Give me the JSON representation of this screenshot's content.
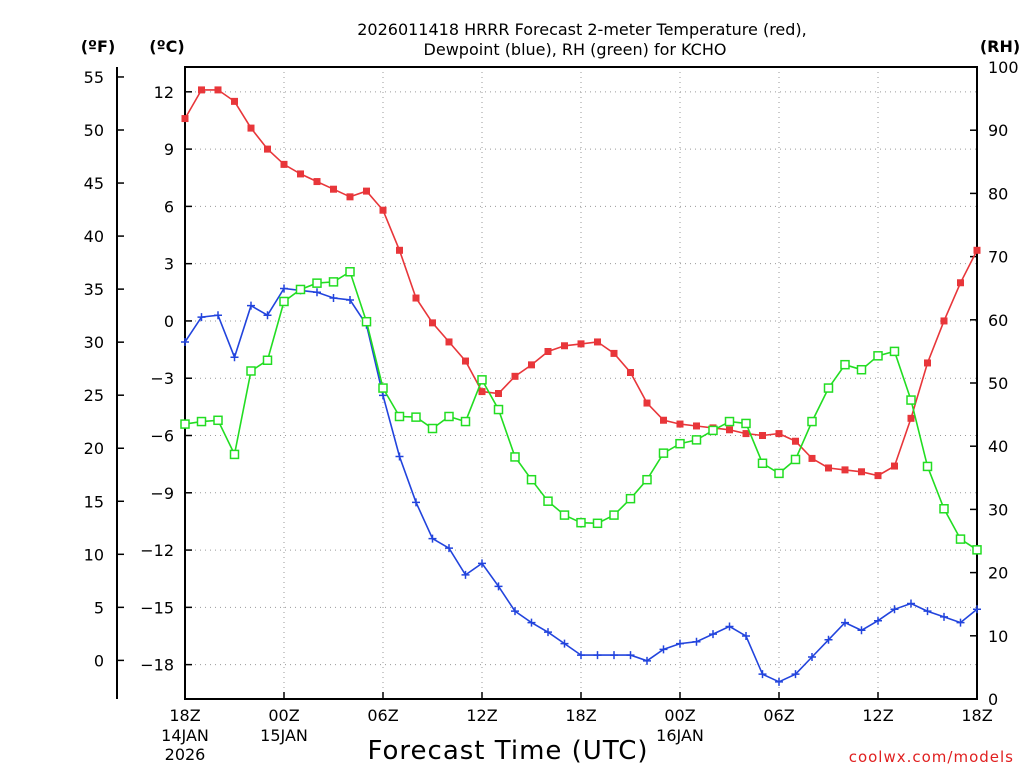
{
  "chart_data": {
    "type": "line",
    "title_line1": "2026011418 HRRR Forecast 2-meter Temperature (red),",
    "title_line2": "Dewpoint (blue), RH (green) for KCHO",
    "xlabel": "Forecast Time (UTC)",
    "credit": "coolwx.com/models",
    "units": {
      "fahrenheit": "(ºF)",
      "celsius": "(ºC)",
      "rh": "(RH)"
    },
    "x_range_hours": [
      0,
      48
    ],
    "x_ticks": [
      {
        "hour": 0,
        "label": "18Z",
        "sub1": "14JAN",
        "sub2": "2026"
      },
      {
        "hour": 6,
        "label": "00Z",
        "sub1": "15JAN",
        "sub2": ""
      },
      {
        "hour": 12,
        "label": "06Z",
        "sub1": "",
        "sub2": ""
      },
      {
        "hour": 18,
        "label": "12Z",
        "sub1": "",
        "sub2": ""
      },
      {
        "hour": 24,
        "label": "18Z",
        "sub1": "",
        "sub2": ""
      },
      {
        "hour": 30,
        "label": "00Z",
        "sub1": "16JAN",
        "sub2": ""
      },
      {
        "hour": 36,
        "label": "06Z",
        "sub1": "",
        "sub2": ""
      },
      {
        "hour": 42,
        "label": "12Z",
        "sub1": "",
        "sub2": ""
      },
      {
        "hour": 48,
        "label": "18Z",
        "sub1": "",
        "sub2": ""
      }
    ],
    "celsius_range": [
      -19.8,
      13.3
    ],
    "celsius_ticks": [
      12,
      9,
      6,
      3,
      0,
      -3,
      -6,
      -9,
      -12,
      -15,
      -18
    ],
    "celsius_tick_labels": [
      "12",
      "9",
      "6",
      "3",
      "0",
      "−3",
      "−6",
      "−9",
      "−12",
      "−15",
      "−18"
    ],
    "fahrenheit_ticks": [
      55,
      50,
      45,
      40,
      35,
      30,
      25,
      20,
      15,
      10,
      5,
      0
    ],
    "fahrenheit_tick_labels": [
      "55",
      "50",
      "45",
      "40",
      "35",
      "30",
      "25",
      "20",
      "15",
      "10",
      "5",
      "0"
    ],
    "rh_range": [
      0,
      100
    ],
    "rh_ticks": [
      100,
      90,
      80,
      70,
      60,
      50,
      40,
      30,
      20,
      10,
      0
    ],
    "rh_tick_labels": [
      "100",
      "90",
      "80",
      "70",
      "60",
      "50",
      "40",
      "30",
      "20",
      "10",
      "0"
    ],
    "series": [
      {
        "name": "2-meter Temperature",
        "axis": "celsius",
        "color": "#e8363a",
        "marker": "filled-square",
        "values": [
          10.6,
          12.1,
          12.1,
          11.5,
          10.1,
          9.0,
          8.2,
          7.7,
          7.3,
          6.9,
          6.5,
          6.8,
          5.8,
          3.7,
          1.2,
          -0.1,
          -1.1,
          -2.1,
          -3.7,
          -3.8,
          -2.9,
          -2.3,
          -1.6,
          -1.3,
          -1.2,
          -1.1,
          -1.7,
          -2.7,
          -4.3,
          -5.2,
          -5.4,
          -5.5,
          -5.6,
          -5.7,
          -5.9,
          -6.0,
          -5.9,
          -6.3,
          -7.2,
          -7.7,
          -7.8,
          -7.9,
          -8.1,
          -7.6,
          -5.1,
          -2.2,
          0.0,
          2.0,
          3.7
        ]
      },
      {
        "name": "Dewpoint",
        "axis": "celsius",
        "color": "#2244dd",
        "marker": "plus",
        "values": [
          -1.1,
          0.2,
          0.3,
          -1.9,
          0.8,
          0.3,
          1.7,
          1.6,
          1.5,
          1.2,
          1.1,
          -0.2,
          -3.9,
          -7.1,
          -9.5,
          -11.4,
          -11.9,
          -13.3,
          -12.7,
          -13.9,
          -15.2,
          -15.8,
          -16.3,
          -16.9,
          -17.5,
          -17.5,
          -17.5,
          -17.5,
          -17.8,
          -17.2,
          -16.9,
          -16.8,
          -16.4,
          -16.0,
          -16.5,
          -18.5,
          -18.9,
          -18.5,
          -17.6,
          -16.7,
          -15.8,
          -16.2,
          -15.7,
          -15.1,
          -14.8,
          -15.2,
          -15.5,
          -15.8,
          -15.1
        ]
      },
      {
        "name": "RH",
        "axis": "rh",
        "color": "#22dd22",
        "marker": "open-square",
        "values": [
          43.5,
          43.9,
          44.1,
          38.7,
          51.9,
          53.6,
          62.9,
          64.8,
          65.8,
          66.0,
          67.6,
          59.7,
          49.2,
          44.7,
          44.6,
          42.8,
          44.7,
          43.9,
          50.5,
          45.8,
          38.3,
          34.7,
          31.3,
          29.1,
          27.9,
          27.8,
          29.1,
          31.7,
          34.7,
          38.9,
          40.4,
          41.0,
          42.5,
          43.9,
          43.6,
          37.3,
          35.7,
          37.9,
          43.9,
          49.2,
          52.9,
          52.1,
          54.3,
          55.0,
          47.3,
          36.8,
          30.1,
          25.3,
          23.6
        ]
      }
    ]
  }
}
